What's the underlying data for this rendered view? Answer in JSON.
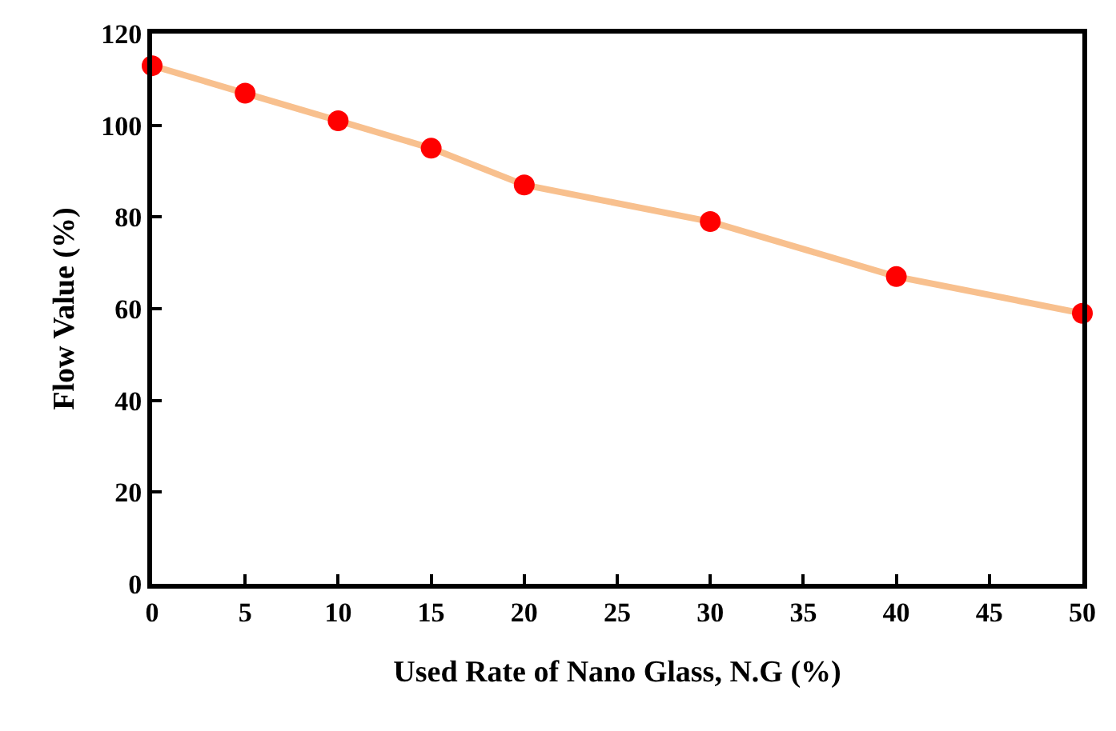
{
  "chart_data": {
    "type": "line",
    "xlabel": "Used Rate of Nano Glass, N.G (%)",
    "ylabel": "Flow Value (%)",
    "x": [
      0,
      5,
      10,
      15,
      20,
      30,
      40,
      50
    ],
    "series": [
      {
        "color": "#f8c08e",
        "colors": [
          "#ff0000",
          "#ff0000",
          "#ff0000",
          "#ff0000",
          "#ff0000",
          "#ff0000",
          "#ff0000",
          "#ff0000"
        ],
        "values": [
          113,
          107,
          101,
          95,
          87,
          79,
          67,
          59
        ]
      }
    ],
    "xlim": [
      0,
      50
    ],
    "xticks": [
      0,
      5,
      10,
      15,
      20,
      25,
      30,
      35,
      40,
      45,
      50
    ],
    "ylim": [
      0,
      120
    ],
    "yticks": [
      0,
      20,
      40,
      60,
      80,
      100,
      120
    ],
    "marker": "circle",
    "line_style": "solid"
  }
}
